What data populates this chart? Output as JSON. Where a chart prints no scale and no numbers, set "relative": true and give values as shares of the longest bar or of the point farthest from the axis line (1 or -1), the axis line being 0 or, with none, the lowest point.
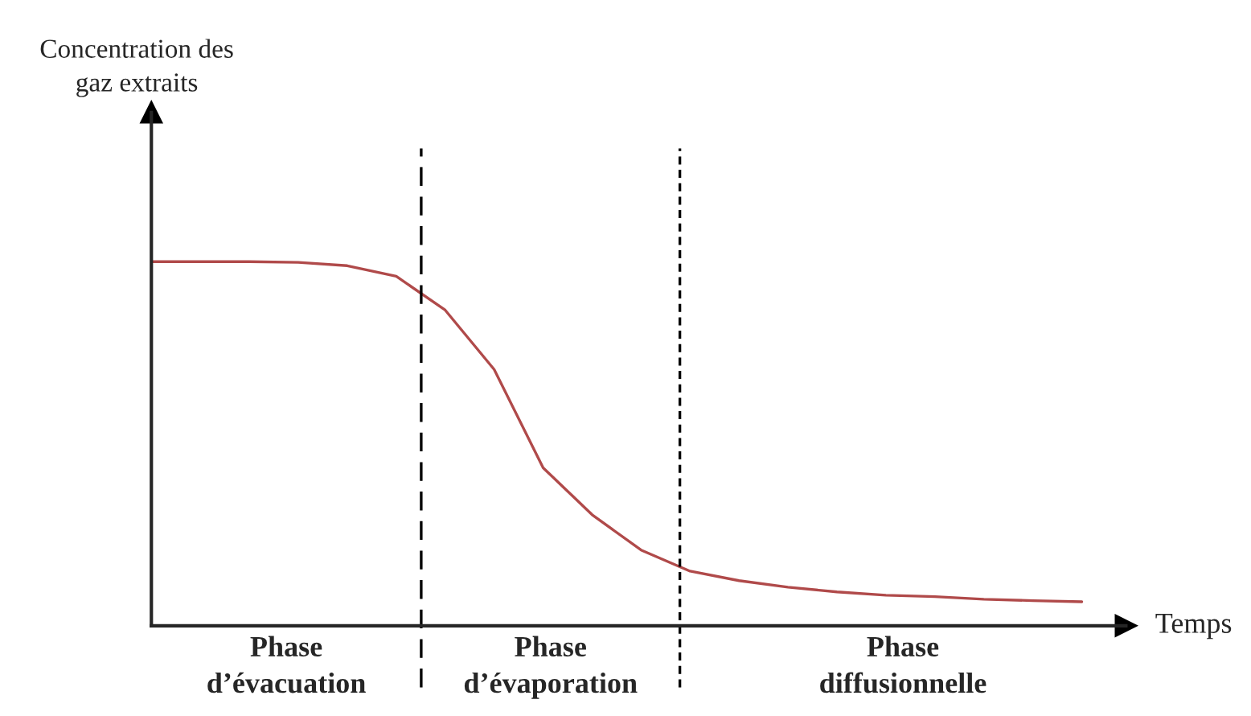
{
  "chart_data": {
    "type": "line",
    "relative": true,
    "xlabel": "Temps",
    "categories": [
      null,
      null,
      null,
      null,
      null,
      null,
      null,
      null,
      null,
      null,
      null,
      null,
      null,
      null,
      null,
      null,
      null,
      null,
      null,
      null
    ],
    "series": [
      {
        "color": "#b04a4a",
        "values": [
          1.0,
          1.0,
          1.0,
          0.998,
          0.989,
          0.96,
          0.867,
          0.704,
          0.434,
          0.305,
          0.208,
          0.15,
          0.124,
          0.106,
          0.093,
          0.084,
          0.08,
          0.073,
          0.069,
          0.066
        ]
      }
    ],
    "annotations": [
      "Concentration des\ngaz extraits",
      "Phase\nd’évacuation",
      "Phase\nd’évaporation",
      "Phase\ndiffusionnelle"
    ]
  }
}
